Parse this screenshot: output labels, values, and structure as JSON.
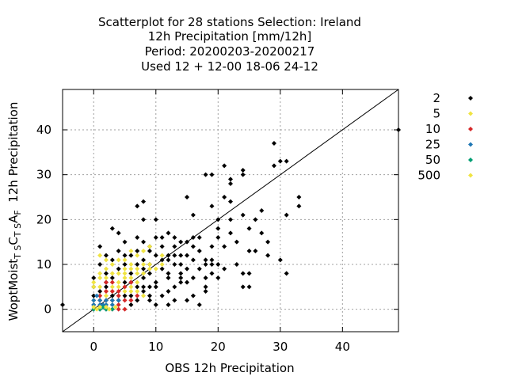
{
  "chart_data": {
    "type": "scatter",
    "title_lines": [
      "Scatterplot for   28 stations Selection: Ireland",
      "12h Precipitation [mm/12h]",
      "Period: 20200203-20200217",
      "Used  12 + 12-00 18-06 24-12"
    ],
    "xlabel": "OBS 12h Precipitation",
    "ylabel": {
      "parts": [
        {
          "text": "WoptMoist",
          "sub": false
        },
        {
          "text": "T S",
          "sub": true
        },
        {
          "text": "C",
          "sub": false
        },
        {
          "text": "T S",
          "sub": true
        },
        {
          "text": "A",
          "sub": false
        },
        {
          "text": "F",
          "sub": true
        },
        {
          "text": "  12h Precipitation",
          "sub": false
        }
      ]
    },
    "xlim": [
      -5,
      49
    ],
    "ylim": [
      -5,
      49
    ],
    "xticks": [
      0,
      10,
      20,
      30,
      40
    ],
    "yticks": [
      0,
      10,
      20,
      30,
      40
    ],
    "grid": true,
    "diagonal": true,
    "legend_position": "outside-right",
    "series": [
      {
        "name": "2",
        "color": "#000000",
        "points": [
          [
            -5,
            1
          ],
          [
            49,
            40
          ],
          [
            1,
            14
          ],
          [
            1,
            10
          ],
          [
            2,
            12
          ],
          [
            2,
            5
          ],
          [
            2,
            8
          ],
          [
            3,
            18
          ],
          [
            3,
            11
          ],
          [
            4,
            17
          ],
          [
            4,
            9
          ],
          [
            4,
            13
          ],
          [
            5,
            10
          ],
          [
            5,
            12
          ],
          [
            5,
            3
          ],
          [
            5,
            15
          ],
          [
            6,
            12
          ],
          [
            6,
            6
          ],
          [
            6,
            8
          ],
          [
            6,
            1
          ],
          [
            7,
            16
          ],
          [
            7,
            10
          ],
          [
            7,
            23
          ],
          [
            7,
            5
          ],
          [
            7,
            13
          ],
          [
            8,
            20
          ],
          [
            8,
            24
          ],
          [
            8,
            15
          ],
          [
            8,
            11
          ],
          [
            8,
            9
          ],
          [
            8,
            7
          ],
          [
            8,
            4
          ],
          [
            9,
            14
          ],
          [
            9,
            13
          ],
          [
            9,
            8
          ],
          [
            9,
            2
          ],
          [
            9,
            3
          ],
          [
            10,
            16
          ],
          [
            10,
            12
          ],
          [
            10,
            20
          ],
          [
            10,
            6
          ],
          [
            10,
            5
          ],
          [
            11,
            11
          ],
          [
            11,
            14
          ],
          [
            11,
            16
          ],
          [
            11,
            9
          ],
          [
            12,
            12
          ],
          [
            12,
            17
          ],
          [
            12,
            8
          ],
          [
            12,
            7
          ],
          [
            12,
            4
          ],
          [
            12,
            1
          ],
          [
            12,
            11
          ],
          [
            13,
            14
          ],
          [
            13,
            16
          ],
          [
            13,
            10
          ],
          [
            13,
            12
          ],
          [
            13,
            2
          ],
          [
            14,
            15
          ],
          [
            14,
            12
          ],
          [
            14,
            8
          ],
          [
            14,
            7
          ],
          [
            14,
            10
          ],
          [
            15,
            25
          ],
          [
            15,
            15
          ],
          [
            15,
            12
          ],
          [
            15,
            9
          ],
          [
            15,
            2
          ],
          [
            16,
            16
          ],
          [
            16,
            14
          ],
          [
            16,
            21
          ],
          [
            16,
            11
          ],
          [
            16,
            7
          ],
          [
            16,
            3
          ],
          [
            17,
            13
          ],
          [
            17,
            9
          ],
          [
            17,
            16
          ],
          [
            18,
            30
          ],
          [
            18,
            10
          ],
          [
            18,
            11
          ],
          [
            18,
            7
          ],
          [
            18,
            5
          ],
          [
            19,
            30
          ],
          [
            19,
            23
          ],
          [
            19,
            14
          ],
          [
            19,
            11
          ],
          [
            19,
            10
          ],
          [
            20,
            20
          ],
          [
            20,
            18
          ],
          [
            20,
            16
          ],
          [
            20,
            10
          ],
          [
            20,
            7
          ],
          [
            21,
            32
          ],
          [
            21,
            25
          ],
          [
            21,
            9
          ],
          [
            22,
            28
          ],
          [
            22,
            29
          ],
          [
            22,
            24
          ],
          [
            22,
            20
          ],
          [
            23,
            15
          ],
          [
            23,
            10
          ],
          [
            24,
            31
          ],
          [
            24,
            30
          ],
          [
            24,
            21
          ],
          [
            24,
            8
          ],
          [
            24,
            5
          ],
          [
            25,
            18
          ],
          [
            25,
            13
          ],
          [
            25,
            8
          ],
          [
            25,
            5
          ],
          [
            26,
            20
          ],
          [
            27,
            17
          ],
          [
            27,
            22
          ],
          [
            28,
            15
          ],
          [
            29,
            37
          ],
          [
            29,
            32
          ],
          [
            30,
            11
          ],
          [
            30,
            33
          ],
          [
            31,
            33
          ],
          [
            31,
            21
          ],
          [
            31,
            8
          ],
          [
            33,
            23
          ],
          [
            33,
            25
          ],
          [
            3,
            7
          ],
          [
            4,
            2
          ],
          [
            6,
            3
          ],
          [
            7,
            2
          ],
          [
            9,
            5
          ],
          [
            10,
            1
          ],
          [
            11,
            3
          ],
          [
            13,
            5
          ],
          [
            14,
            6
          ],
          [
            15,
            6
          ],
          [
            17,
            1
          ],
          [
            18,
            4
          ],
          [
            19,
            8
          ],
          [
            21,
            14
          ],
          [
            22,
            17
          ],
          [
            26,
            13
          ],
          [
            28,
            12
          ],
          [
            0,
            1
          ],
          [
            0,
            3
          ],
          [
            0,
            5
          ],
          [
            0,
            7
          ],
          [
            1,
            4
          ],
          [
            2,
            6
          ],
          [
            3,
            3
          ],
          [
            5,
            6
          ],
          [
            8,
            5
          ],
          [
            9,
            10
          ]
        ]
      },
      {
        "name": "5",
        "color": "#f0e442",
        "points": [
          [
            0,
            5
          ],
          [
            0,
            6
          ],
          [
            1,
            7
          ],
          [
            1,
            8
          ],
          [
            1,
            5
          ],
          [
            1,
            2
          ],
          [
            2,
            7
          ],
          [
            2,
            4
          ],
          [
            2,
            9
          ],
          [
            2,
            3
          ],
          [
            3,
            5
          ],
          [
            3,
            6
          ],
          [
            3,
            10
          ],
          [
            3,
            8
          ],
          [
            3,
            2
          ],
          [
            3,
            1
          ],
          [
            4,
            6
          ],
          [
            4,
            8
          ],
          [
            4,
            11
          ],
          [
            4,
            5
          ],
          [
            4,
            3
          ],
          [
            5,
            7
          ],
          [
            5,
            9
          ],
          [
            5,
            4
          ],
          [
            5,
            11
          ],
          [
            5,
            8
          ],
          [
            6,
            7
          ],
          [
            6,
            9
          ],
          [
            6,
            13
          ],
          [
            6,
            5
          ],
          [
            6,
            10
          ],
          [
            7,
            8
          ],
          [
            7,
            12
          ],
          [
            7,
            6
          ],
          [
            7,
            9
          ],
          [
            8,
            10
          ],
          [
            8,
            13
          ],
          [
            8,
            8
          ],
          [
            9,
            10
          ],
          [
            9,
            9
          ],
          [
            9,
            14
          ],
          [
            10,
            9
          ],
          [
            11,
            12
          ],
          [
            11,
            10
          ],
          [
            2,
            11
          ],
          [
            1,
            12
          ],
          [
            0,
            2
          ],
          [
            1,
            3
          ],
          [
            2,
            1
          ],
          [
            3,
            4
          ],
          [
            5,
            5
          ],
          [
            6,
            4
          ],
          [
            7,
            4
          ],
          [
            8,
            3
          ]
        ]
      },
      {
        "name": "10",
        "color": "#d62728",
        "points": [
          [
            1,
            2
          ],
          [
            1,
            3
          ],
          [
            2,
            2
          ],
          [
            2,
            4
          ],
          [
            2,
            6
          ],
          [
            3,
            2
          ],
          [
            3,
            4
          ],
          [
            3,
            6
          ],
          [
            4,
            3
          ],
          [
            4,
            1
          ],
          [
            4,
            4
          ],
          [
            5,
            2
          ],
          [
            5,
            5
          ],
          [
            6,
            2
          ],
          [
            6,
            6
          ],
          [
            7,
            3
          ],
          [
            5,
            0
          ],
          [
            3,
            0
          ],
          [
            4,
            0
          ],
          [
            2,
            0
          ]
        ]
      },
      {
        "name": "25",
        "color": "#1f77b4",
        "points": [
          [
            0,
            1
          ],
          [
            0,
            2
          ],
          [
            0,
            0
          ],
          [
            1,
            1
          ],
          [
            1,
            0
          ],
          [
            1,
            2
          ],
          [
            2,
            1
          ],
          [
            2,
            2
          ],
          [
            2,
            0
          ],
          [
            3,
            1
          ],
          [
            3,
            2
          ],
          [
            0.5,
            3
          ],
          [
            1.5,
            1
          ],
          [
            4,
            2
          ]
        ]
      },
      {
        "name": "50",
        "color": "#009e73",
        "points": [
          [
            0,
            0
          ],
          [
            1,
            0
          ],
          [
            2,
            0
          ],
          [
            3,
            0
          ],
          [
            1.5,
            0.5
          ]
        ]
      },
      {
        "name": "500",
        "color": "#f0e442",
        "points": [
          [
            0,
            0.5
          ],
          [
            1,
            0.5
          ],
          [
            2,
            0.5
          ],
          [
            2.5,
            0
          ],
          [
            3.5,
            0.5
          ],
          [
            0.5,
            0
          ]
        ]
      }
    ]
  }
}
